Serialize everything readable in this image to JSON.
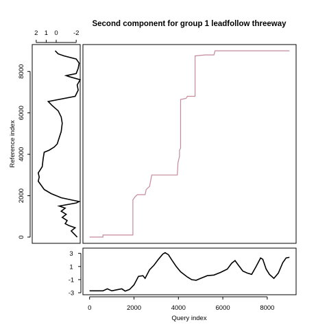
{
  "chart_data": {
    "type": "line",
    "title": "Second component for group 1 leadfollow threeway",
    "colors": {
      "alignment": "#c48a9a",
      "curve": "#000000",
      "frame": "#000000",
      "background": "#ffffff"
    },
    "alignment_panel": {
      "xlim": [
        -300,
        9300
      ],
      "ylim": [
        -300,
        9300
      ],
      "path": [
        [
          0,
          0
        ],
        [
          600,
          0
        ],
        [
          600,
          100
        ],
        [
          1950,
          100
        ],
        [
          1950,
          1800
        ],
        [
          2050,
          1950
        ],
        [
          2150,
          2050
        ],
        [
          2500,
          2050
        ],
        [
          2550,
          2300
        ],
        [
          2700,
          2450
        ],
        [
          2800,
          3000
        ],
        [
          3950,
          3000
        ],
        [
          3980,
          3600
        ],
        [
          4050,
          3900
        ],
        [
          4050,
          4200
        ],
        [
          4100,
          4300
        ],
        [
          4100,
          6650
        ],
        [
          4350,
          6700
        ],
        [
          4400,
          6800
        ],
        [
          4750,
          6800
        ],
        [
          4750,
          8750
        ],
        [
          5200,
          8800
        ],
        [
          5600,
          8800
        ],
        [
          5650,
          9000
        ],
        [
          9000,
          9000
        ]
      ]
    },
    "reference_panel": {
      "xlabel_ticks": [
        "2",
        "1",
        "0",
        "-2"
      ],
      "x_tick_values": [
        2,
        1,
        0,
        -2
      ],
      "xlim": [
        2.4,
        -2.4
      ],
      "ylabel": "Reference index",
      "y_ticks": [
        0,
        2000,
        4000,
        6000,
        8000
      ],
      "ylim": [
        -300,
        9300
      ],
      "series": [
        [
          -2.1,
          0
        ],
        [
          -1.8,
          150
        ],
        [
          -1.5,
          300
        ],
        [
          -1.9,
          450
        ],
        [
          -1.3,
          550
        ],
        [
          -0.9,
          650
        ],
        [
          -1.1,
          800
        ],
        [
          -0.6,
          950
        ],
        [
          -1.0,
          1100
        ],
        [
          -0.5,
          1250
        ],
        [
          -0.9,
          1400
        ],
        [
          -0.3,
          1500
        ],
        [
          -2.0,
          1650
        ],
        [
          -2.3,
          1720
        ],
        [
          -1.5,
          1800
        ],
        [
          -0.5,
          1900
        ],
        [
          0.5,
          2100
        ],
        [
          1.2,
          2300
        ],
        [
          1.5,
          2500
        ],
        [
          1.8,
          2700
        ],
        [
          1.7,
          2900
        ],
        [
          1.8,
          3100
        ],
        [
          1.4,
          3400
        ],
        [
          1.3,
          3800
        ],
        [
          1.2,
          4100
        ],
        [
          0.7,
          4200
        ],
        [
          0.2,
          4350
        ],
        [
          -0.1,
          4500
        ],
        [
          -0.3,
          4800
        ],
        [
          -0.5,
          5100
        ],
        [
          -0.6,
          5500
        ],
        [
          -0.5,
          5800
        ],
        [
          -0.2,
          6100
        ],
        [
          0.4,
          6350
        ],
        [
          0.8,
          6550
        ],
        [
          -1.9,
          6800
        ],
        [
          -2.2,
          7100
        ],
        [
          -2.1,
          7350
        ],
        [
          -2.4,
          7600
        ],
        [
          -1.3,
          7750
        ],
        [
          -1.0,
          7800
        ],
        [
          -2.0,
          7900
        ],
        [
          -2.2,
          8150
        ],
        [
          -2.3,
          8400
        ],
        [
          -2.0,
          8600
        ],
        [
          -0.8,
          8750
        ],
        [
          -0.2,
          8850
        ],
        [
          0.1,
          9000
        ]
      ]
    },
    "query_panel": {
      "xlabel": "Query index",
      "x_ticks": [
        0,
        2000,
        4000,
        6000,
        8000
      ],
      "xlim": [
        -300,
        9300
      ],
      "y_ticks": [
        3,
        1,
        -1,
        -3
      ],
      "y_tick_labels": [
        "3",
        "1",
        "-1",
        "-3"
      ],
      "ylim": [
        -3.3,
        3.8
      ],
      "series": [
        [
          0,
          -2.7
        ],
        [
          600,
          -2.7
        ],
        [
          800,
          -2.4
        ],
        [
          1000,
          -2.7
        ],
        [
          1300,
          -2.5
        ],
        [
          1450,
          -2.4
        ],
        [
          1600,
          -2.75
        ],
        [
          1800,
          -2.5
        ],
        [
          2000,
          -1.8
        ],
        [
          2200,
          -0.5
        ],
        [
          2400,
          -0.4
        ],
        [
          2500,
          -0.8
        ],
        [
          2700,
          0.5
        ],
        [
          2900,
          1.2
        ],
        [
          3100,
          2.1
        ],
        [
          3300,
          2.9
        ],
        [
          3400,
          3.1
        ],
        [
          3550,
          2.8
        ],
        [
          3700,
          2.0
        ],
        [
          3900,
          1.0
        ],
        [
          4100,
          0.2
        ],
        [
          4400,
          -0.6
        ],
        [
          4600,
          -1.0
        ],
        [
          4800,
          -1.1
        ],
        [
          5000,
          -0.8
        ],
        [
          5300,
          -0.4
        ],
        [
          5600,
          -0.3
        ],
        [
          5900,
          0.1
        ],
        [
          6200,
          0.6
        ],
        [
          6400,
          1.5
        ],
        [
          6550,
          1.9
        ],
        [
          6700,
          1.2
        ],
        [
          6900,
          0.3
        ],
        [
          7100,
          0.0
        ],
        [
          7300,
          -0.2
        ],
        [
          7500,
          1.0
        ],
        [
          7700,
          2.3
        ],
        [
          7800,
          2.1
        ],
        [
          7950,
          0.6
        ],
        [
          8100,
          -0.2
        ],
        [
          8300,
          -0.8
        ],
        [
          8500,
          0.0
        ],
        [
          8700,
          1.6
        ],
        [
          8850,
          2.3
        ],
        [
          9000,
          2.4
        ]
      ]
    }
  }
}
